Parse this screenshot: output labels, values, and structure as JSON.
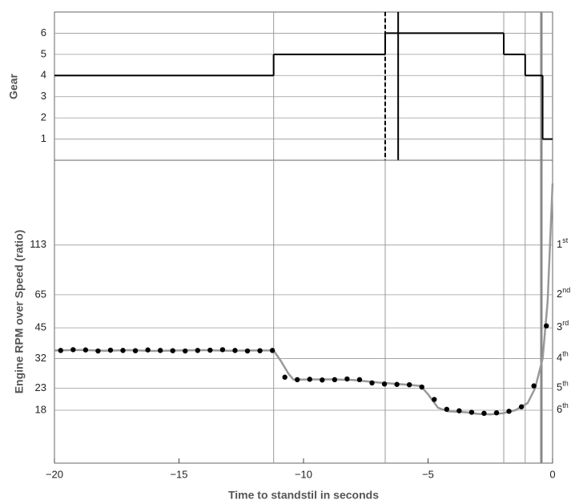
{
  "chart_data": [
    {
      "type": "step",
      "ylabel": "Gear",
      "x": [
        -20,
        -11.2,
        -6.72,
        -1.96,
        -1.1,
        -0.4
      ],
      "values": [
        4,
        5,
        6,
        5,
        4,
        1
      ],
      "color": "#000000",
      "xlim": [
        -20,
        0
      ],
      "ylim": [
        0,
        7
      ],
      "yticks": [
        1,
        2,
        3,
        4,
        5,
        6
      ],
      "grid": true,
      "reference_lines": [
        -11.2,
        -6.72,
        -1.96,
        -1.1
      ],
      "thick_reference": -0.45,
      "marker_lines": [
        {
          "x": -6.72,
          "style": "dashed"
        },
        {
          "x": -6.2,
          "style": "solid"
        }
      ]
    },
    {
      "type": "line",
      "ylabel": "Engine RPM over Speed (ratio)",
      "xlabel": "Time to standstil in seconds",
      "yscale": "log",
      "xlim": [
        -20,
        0
      ],
      "ylim": [
        10,
        290
      ],
      "yticks": [
        18,
        23,
        32,
        45,
        65,
        113
      ],
      "grid": true,
      "xticks": [
        {
          "value": -20,
          "label": "−20"
        },
        {
          "value": -15,
          "label": "−15"
        },
        {
          "value": -10,
          "label": "−10"
        },
        {
          "value": -5,
          "label": "−5"
        },
        0
      ],
      "right_labels": [
        {
          "value": 113,
          "label": "1st"
        },
        {
          "value": 65,
          "label": "2nd"
        },
        {
          "value": 45,
          "label": "3rd"
        },
        {
          "value": 32,
          "label": "4th"
        },
        {
          "value": 23,
          "label": "5th"
        },
        {
          "value": 18,
          "label": "6th"
        }
      ],
      "reference_lines": [
        -11.2,
        -6.72,
        -1.96,
        -1.1
      ],
      "thick_reference": -0.45,
      "series": [
        {
          "style": "line",
          "color": "#999999",
          "x": [
            -20,
            -19,
            -18,
            -17,
            -16,
            -15,
            -14,
            -13,
            -12,
            -11.2,
            -10.9,
            -10.6,
            -10.4,
            -9,
            -8,
            -7,
            -6,
            -5.3,
            -5,
            -4.6,
            -4.2,
            -3.5,
            -3,
            -2.5,
            -2,
            -1.5,
            -1,
            -0.7,
            -0.4,
            -0.2,
            0
          ],
          "values": [
            35,
            35.2,
            34.9,
            35.1,
            34.8,
            35,
            35.1,
            34.9,
            35,
            35,
            31,
            27,
            25.3,
            25.4,
            25.2,
            24.5,
            24,
            23.6,
            21.5,
            18.5,
            17.8,
            17.6,
            17.3,
            17.2,
            17.4,
            18,
            19.5,
            23,
            32,
            60,
            224
          ]
        },
        {
          "style": "dots",
          "color": "#000000",
          "x": [
            -19.75,
            -19.25,
            -18.75,
            -18.25,
            -17.75,
            -17.25,
            -16.75,
            -16.25,
            -15.75,
            -15.25,
            -14.75,
            -14.25,
            -13.75,
            -13.25,
            -12.75,
            -12.25,
            -11.75,
            -11.25,
            -10.75,
            -10.25,
            -9.75,
            -9.25,
            -8.75,
            -8.25,
            -7.75,
            -7.25,
            -6.75,
            -6.25,
            -5.75,
            -5.25,
            -4.75,
            -4.25,
            -3.75,
            -3.25,
            -2.75,
            -2.25,
            -1.75,
            -1.25,
            -0.75,
            -0.25
          ],
          "values": [
            35,
            35.3,
            35.2,
            34.8,
            35.1,
            35,
            34.9,
            35.2,
            35,
            34.9,
            34.8,
            35,
            35.1,
            35.3,
            35,
            34.8,
            34.9,
            35,
            26,
            25.3,
            25.4,
            25.2,
            25.3,
            25.5,
            25.3,
            24.4,
            24.1,
            24,
            23.9,
            23.3,
            20.3,
            18.2,
            17.9,
            17.6,
            17.4,
            17.5,
            17.8,
            18.7,
            23.6,
            46
          ]
        }
      ]
    }
  ]
}
